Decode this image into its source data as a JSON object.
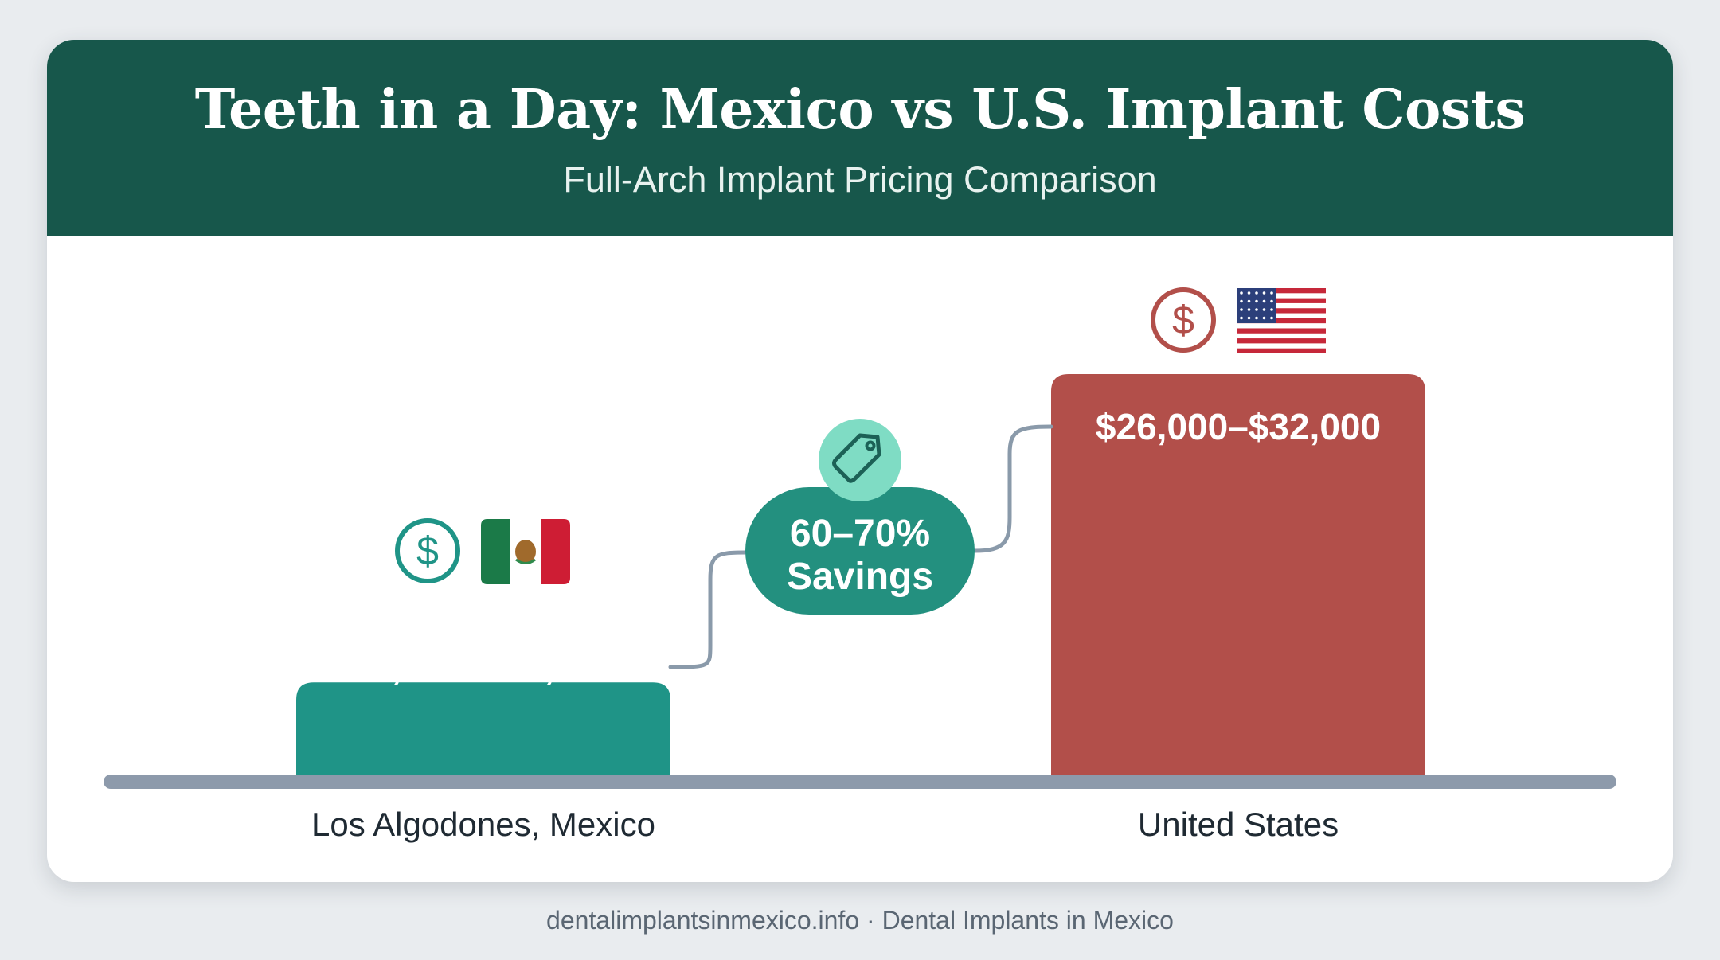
{
  "header": {
    "title": "Teeth in a Day: Mexico vs U.S. Implant Costs",
    "subtitle": "Full-Arch Implant Pricing Comparison"
  },
  "chart_data": {
    "type": "bar",
    "title": "Teeth in a Day: Mexico vs U.S. Implant Costs",
    "subtitle": "Full-Arch Implant Pricing Comparison",
    "categories": [
      "Los Algodones, Mexico",
      "United States"
    ],
    "series": [
      {
        "values": [
          [
            9000,
            13000
          ],
          [
            26000,
            32000
          ]
        ]
      }
    ],
    "data_labels": [
      "$9,000–$13,000",
      "$26,000–$32,000"
    ],
    "annotation": {
      "text_line1": "60–70%",
      "text_line2": "Savings"
    },
    "ylim": [
      0,
      32000
    ],
    "grid": false,
    "legend": "none",
    "colors": {
      "mexico": "#1f9487",
      "united_states": "#b24f4a",
      "savings_badge": "#23907f",
      "tag_circle": "#7fdcc4",
      "baseline": "#8d9aab",
      "connector": "#8a9aaa"
    },
    "icons": {
      "mexico": [
        "dollar-circle-icon",
        "mexico-flag-icon"
      ],
      "united_states": [
        "dollar-circle-icon",
        "us-flag-icon"
      ],
      "annotation": "price-tag-icon"
    }
  },
  "footer": {
    "text": "dentalimplantsinmexico.info · Dental Implants in Mexico"
  }
}
